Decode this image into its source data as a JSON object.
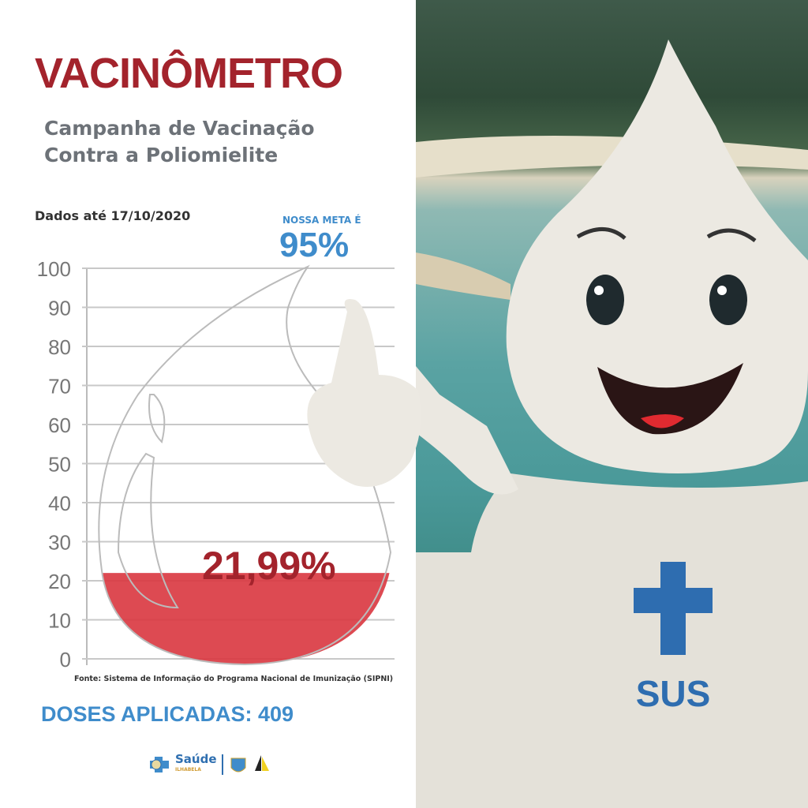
{
  "title": "VACINÔMETRO",
  "subtitle_line1": "Campanha de Vacinação",
  "subtitle_line2": "Contra a Poliomielite",
  "date_label": "Dados até 17/10/2020",
  "goal_label": "NOSSA META É",
  "goal_value": "95%",
  "source": "Fonte: Sistema de Informação do Programa Nacional de Imunização (SIPNI)",
  "doses": "DOSES APLICADAS: 409",
  "logos": {
    "saude": "Saúde",
    "saude_sub": "ILHABELA",
    "mascot_badge": "SUS"
  },
  "colors": {
    "title": "#a3232c",
    "accent_blue": "#3f8ccb",
    "fill": "#d9363f"
  },
  "chart_data": {
    "type": "gauge",
    "yticks": [
      0,
      10,
      20,
      30,
      40,
      50,
      60,
      70,
      80,
      90,
      100
    ],
    "ylim": [
      0,
      100
    ],
    "value": 21.99,
    "value_label": "21,99%",
    "goal": 95,
    "grid": true
  }
}
